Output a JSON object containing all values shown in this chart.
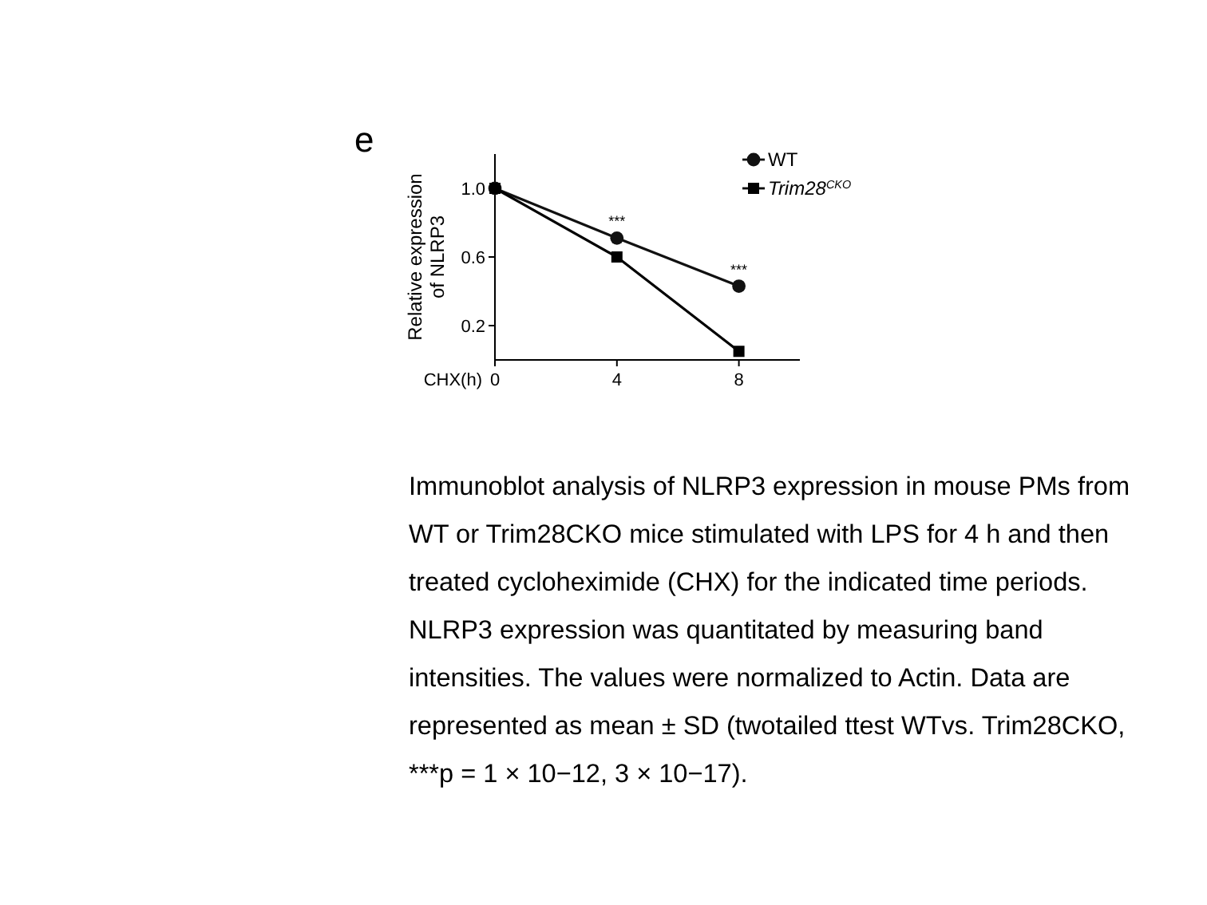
{
  "chart_data": {
    "type": "line",
    "title": "e",
    "xlabel": "CHX(h)",
    "ylabel": "Relative expression of NLRP3",
    "x": [
      0,
      4,
      8
    ],
    "xlim": [
      0,
      10
    ],
    "xticks": [
      0,
      4,
      8
    ],
    "ylim": [
      0,
      1.2
    ],
    "yticks": [
      0.2,
      0.6,
      {
        "value": 1,
        "label": "1.0"
      }
    ],
    "legend": "top right",
    "grid": false,
    "line_style": "solid",
    "series": [
      {
        "name": "WT",
        "color": "#111111",
        "marker": "circle",
        "values": [
          1,
          0.71,
          0.43
        ]
      },
      {
        "name": "Trim28$^{CKO}$",
        "color": "#000000",
        "marker": "square",
        "values": [
          1,
          0.6,
          0.05
        ]
      }
    ],
    "annotations": [
      {
        "text": "***",
        "x": 4,
        "y": 0.78
      },
      {
        "text": "***",
        "x": 8,
        "y": 0.5
      },
      "Immunoblot analysis of NLRP3 expression in mouse PMs from WT or Trim28CKO mice stimulated with LPS for 4 h and then treated cycloheximide (CHX) for the indicated time periods. NLRP3 expression was quantitated by measuring band intensities. The values were normalized to Actin. Data are represented as mean ± SD (twotailed ttest WTvs. Trim28CKO, ***p = 1 × 10−12, 3 × 10−17)."
    ]
  }
}
